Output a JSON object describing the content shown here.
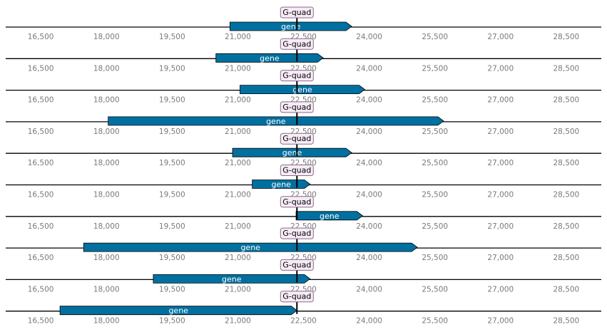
{
  "axis": {
    "min": 15700,
    "max": 29300,
    "ticks": [
      16500,
      18000,
      19500,
      21000,
      22500,
      24000,
      25500,
      27000,
      28500
    ],
    "tick_labels": [
      "16,500",
      "18,000",
      "19,500",
      "21,000",
      "22,500",
      "24,000",
      "25,500",
      "27,000",
      "28,500"
    ]
  },
  "colors": {
    "gene_fill": "#0070a0",
    "gene_stroke": "#000000",
    "axis_line": "#000000",
    "feature_box_fill": "#f7ecf6",
    "feature_box_stroke": "#8a6a8a",
    "tick_label": "#7a7a7a"
  },
  "tracks": [
    {
      "gene": {
        "label": "gene",
        "start": 20820,
        "end": 23600
      },
      "feature": {
        "label": "G-quad",
        "position": 22350
      }
    },
    {
      "gene": {
        "label": "gene",
        "start": 20500,
        "end": 22950
      },
      "feature": {
        "label": "G-quad",
        "position": 22350
      }
    },
    {
      "gene": {
        "label": "gene",
        "start": 21050,
        "end": 23900
      },
      "feature": {
        "label": "G-quad",
        "position": 22350
      }
    },
    {
      "gene": {
        "label": "gene",
        "start": 18040,
        "end": 25700
      },
      "feature": {
        "label": "G-quad",
        "position": 22350
      }
    },
    {
      "gene": {
        "label": "gene",
        "start": 20880,
        "end": 23600
      },
      "feature": {
        "label": "G-quad",
        "position": 22350
      }
    },
    {
      "gene": {
        "label": "gene",
        "start": 21330,
        "end": 22650
      },
      "feature": {
        "label": "G-quad",
        "position": 22350
      }
    },
    {
      "gene": {
        "label": "gene",
        "start": 22330,
        "end": 23850
      },
      "feature": {
        "label": "G-quad",
        "position": 22350
      }
    },
    {
      "gene": {
        "label": "gene",
        "start": 17480,
        "end": 25100
      },
      "feature": {
        "label": "G-quad",
        "position": 22350
      }
    },
    {
      "gene": {
        "label": "gene",
        "start": 19070,
        "end": 22650
      },
      "feature": {
        "label": "G-quad",
        "position": 22350
      }
    },
    {
      "gene": {
        "label": "gene",
        "start": 16940,
        "end": 22350
      },
      "feature": {
        "label": "G-quad",
        "position": 22350
      }
    }
  ]
}
